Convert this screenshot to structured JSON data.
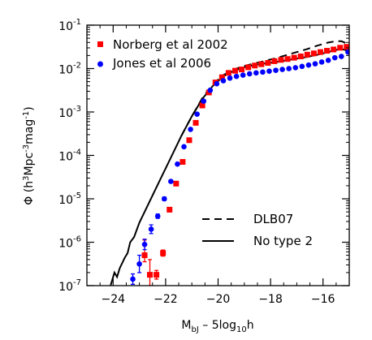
{
  "chart_data": {
    "type": "scatter",
    "title": "",
    "xlabel": {
      "main": "M",
      "sub": "bJ",
      "tail": " – 5log",
      "sub2": "10",
      "tail2": "h"
    },
    "ylabel": {
      "pre": "Φ (h",
      "sup1": "3",
      "mid": "Mpc",
      "sup2": "-3",
      "mid2": "mag",
      "sup3": "-1",
      "post": ")"
    },
    "xlim": [
      -25.0,
      -15.0
    ],
    "ylim_log10": [
      -7,
      -1
    ],
    "y_scale": "log",
    "x_ticks": [
      -24,
      -22,
      -20,
      -18,
      -16
    ],
    "x_tick_labels": [
      "−24",
      "−22",
      "−20",
      "−18",
      "−16"
    ],
    "y_ticks_log10": [
      -7,
      -6,
      -5,
      -4,
      -3,
      -2,
      -1
    ],
    "y_tick_labels": [
      {
        "base": "10",
        "exp": "-7"
      },
      {
        "base": "10",
        "exp": "-6"
      },
      {
        "base": "10",
        "exp": "-5"
      },
      {
        "base": "10",
        "exp": "-4"
      },
      {
        "base": "10",
        "exp": "-3"
      },
      {
        "base": "10",
        "exp": "-2"
      },
      {
        "base": "10",
        "exp": "-1"
      }
    ],
    "legend_top": [
      {
        "label": "Norberg et al 2002",
        "marker": "square",
        "color": "#ff0000"
      },
      {
        "label": "Jones et al 2006",
        "marker": "circle",
        "color": "#0000ff"
      }
    ],
    "legend_bottom": [
      {
        "label": "DLB07",
        "line": "dashed"
      },
      {
        "label": "No type 2",
        "line": "solid"
      }
    ],
    "series": [
      {
        "name": "Norberg et al 2002",
        "marker": "square",
        "color": "#ff0000",
        "points": [
          [
            -22.8,
            -6.3,
            0.35,
            0.15
          ],
          [
            -22.6,
            -6.75,
            0.35,
            0.25
          ],
          [
            -22.35,
            -6.75,
            0.1,
            0.1
          ],
          [
            -22.1,
            -6.25,
            0.07,
            0.07
          ],
          [
            -21.85,
            -5.25,
            0.05,
            0.05
          ],
          [
            -21.6,
            -4.65,
            0.03,
            0.03
          ],
          [
            -21.35,
            -4.15,
            0.02,
            0.02
          ],
          [
            -21.1,
            -3.65,
            0,
            0
          ],
          [
            -20.85,
            -3.25,
            0,
            0
          ],
          [
            -20.6,
            -2.85,
            0,
            0
          ],
          [
            -20.35,
            -2.55,
            0,
            0
          ],
          [
            -20.1,
            -2.32,
            0,
            0
          ],
          [
            -19.85,
            -2.2,
            0,
            0
          ],
          [
            -19.6,
            -2.1,
            0,
            0
          ],
          [
            -19.35,
            -2.05,
            0,
            0
          ],
          [
            -19.1,
            -2.02,
            0,
            0
          ],
          [
            -18.85,
            -1.97,
            0,
            0
          ],
          [
            -18.6,
            -1.93,
            0,
            0
          ],
          [
            -18.35,
            -1.9,
            0,
            0
          ],
          [
            -18.1,
            -1.87,
            0,
            0
          ],
          [
            -17.85,
            -1.83,
            0,
            0
          ],
          [
            -17.6,
            -1.8,
            0,
            0
          ],
          [
            -17.35,
            -1.78,
            0,
            0
          ],
          [
            -17.1,
            -1.75,
            0,
            0
          ],
          [
            -16.85,
            -1.72,
            0,
            0
          ],
          [
            -16.6,
            -1.68,
            0,
            0
          ],
          [
            -16.35,
            -1.65,
            0,
            0
          ],
          [
            -16.1,
            -1.62,
            0,
            0
          ],
          [
            -15.85,
            -1.59,
            0,
            0
          ],
          [
            -15.6,
            -1.56,
            0,
            0
          ],
          [
            -15.35,
            -1.52,
            0,
            0
          ],
          [
            -15.1,
            -1.5,
            0,
            0
          ]
        ]
      },
      {
        "name": "Jones et al 2006",
        "marker": "circle",
        "color": "#0000ff",
        "points": [
          [
            -23.25,
            -6.85,
            0.12,
            0.12
          ],
          [
            -23.0,
            -6.5,
            0.2,
            0.2
          ],
          [
            -22.8,
            -6.05,
            0.12,
            0.12
          ],
          [
            -22.55,
            -5.7,
            0.1,
            0.1
          ],
          [
            -22.3,
            -5.4,
            0.05,
            0.05
          ],
          [
            -22.05,
            -5.0,
            0.04,
            0.04
          ],
          [
            -21.8,
            -4.6,
            0.03,
            0.03
          ],
          [
            -21.55,
            -4.2,
            0,
            0
          ],
          [
            -21.3,
            -3.8,
            0,
            0
          ],
          [
            -21.05,
            -3.4,
            0,
            0
          ],
          [
            -20.8,
            -3.05,
            0,
            0
          ],
          [
            -20.55,
            -2.75,
            0,
            0
          ],
          [
            -20.3,
            -2.5,
            0,
            0
          ],
          [
            -20.05,
            -2.35,
            0,
            0
          ],
          [
            -19.8,
            -2.28,
            0,
            0
          ],
          [
            -19.55,
            -2.22,
            0,
            0
          ],
          [
            -19.3,
            -2.18,
            0,
            0
          ],
          [
            -19.05,
            -2.15,
            0,
            0
          ],
          [
            -18.8,
            -2.12,
            0,
            0
          ],
          [
            -18.55,
            -2.1,
            0,
            0
          ],
          [
            -18.3,
            -2.08,
            0,
            0
          ],
          [
            -18.05,
            -2.06,
            0,
            0
          ],
          [
            -17.8,
            -2.04,
            0,
            0
          ],
          [
            -17.55,
            -2.02,
            0,
            0
          ],
          [
            -17.3,
            -2.0,
            0,
            0
          ],
          [
            -17.05,
            -1.98,
            0,
            0
          ],
          [
            -16.8,
            -1.95,
            0,
            0
          ],
          [
            -16.55,
            -1.92,
            0,
            0
          ],
          [
            -16.3,
            -1.89,
            0,
            0
          ],
          [
            -16.05,
            -1.85,
            0,
            0
          ],
          [
            -15.8,
            -1.81,
            0,
            0
          ],
          [
            -15.55,
            -1.75,
            0,
            0
          ],
          [
            -15.3,
            -1.72,
            0,
            0
          ],
          [
            -15.05,
            -1.62,
            0,
            0
          ]
        ]
      }
    ],
    "curves": [
      {
        "name": "No type 2",
        "dash": "solid",
        "points": [
          [
            -24.1,
            -7.0
          ],
          [
            -23.95,
            -6.7
          ],
          [
            -23.85,
            -6.8
          ],
          [
            -23.75,
            -6.6
          ],
          [
            -23.55,
            -6.35
          ],
          [
            -23.45,
            -6.25
          ],
          [
            -23.35,
            -6.0
          ],
          [
            -23.2,
            -5.88
          ],
          [
            -23.0,
            -5.55
          ],
          [
            -22.6,
            -5.05
          ],
          [
            -22.2,
            -4.55
          ],
          [
            -21.8,
            -4.05
          ],
          [
            -21.4,
            -3.55
          ],
          [
            -21.0,
            -3.1
          ],
          [
            -20.6,
            -2.7
          ],
          [
            -20.2,
            -2.4
          ],
          [
            -19.8,
            -2.18
          ],
          [
            -19.4,
            -2.05
          ],
          [
            -19.0,
            -1.97
          ],
          [
            -18.6,
            -1.92
          ],
          [
            -18.2,
            -1.88
          ],
          [
            -17.8,
            -1.85
          ],
          [
            -17.4,
            -1.81
          ],
          [
            -17.0,
            -1.77
          ],
          [
            -16.6,
            -1.73
          ],
          [
            -16.2,
            -1.68
          ],
          [
            -15.8,
            -1.62
          ],
          [
            -15.5,
            -1.57
          ],
          [
            -15.3,
            -1.55
          ],
          [
            -15.1,
            -1.58
          ],
          [
            -15.0,
            -1.62
          ]
        ]
      },
      {
        "name": "DLB07",
        "dash": "dashed",
        "points": [
          [
            -21.4,
            -3.55
          ],
          [
            -21.0,
            -3.1
          ],
          [
            -20.6,
            -2.68
          ],
          [
            -20.2,
            -2.36
          ],
          [
            -19.8,
            -2.15
          ],
          [
            -19.4,
            -2.02
          ],
          [
            -19.0,
            -1.94
          ],
          [
            -18.6,
            -1.88
          ],
          [
            -18.2,
            -1.82
          ],
          [
            -17.8,
            -1.76
          ],
          [
            -17.4,
            -1.69
          ],
          [
            -17.0,
            -1.62
          ],
          [
            -16.6,
            -1.55
          ],
          [
            -16.2,
            -1.47
          ],
          [
            -15.8,
            -1.4
          ],
          [
            -15.5,
            -1.37
          ],
          [
            -15.3,
            -1.37
          ],
          [
            -15.1,
            -1.42
          ],
          [
            -15.0,
            -1.46
          ]
        ]
      }
    ]
  }
}
